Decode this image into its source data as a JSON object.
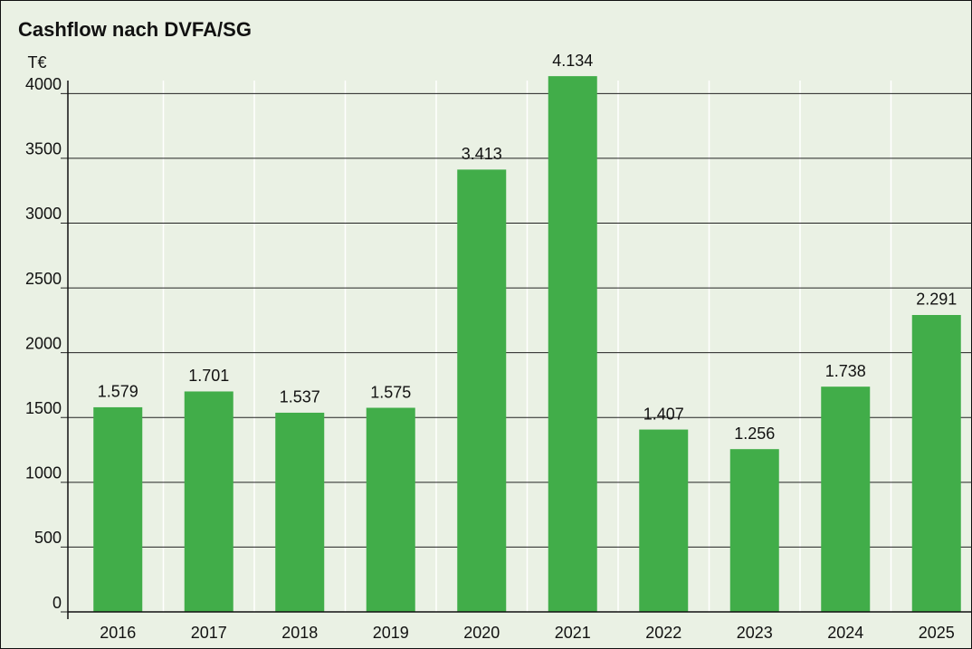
{
  "chart_data": {
    "type": "bar",
    "title": "Cashflow nach DVFA/SG",
    "y_label": "T€",
    "categories": [
      "2016",
      "2017",
      "2018",
      "2019",
      "2020",
      "2021",
      "2022",
      "2023",
      "2024",
      "2025"
    ],
    "values": [
      1579,
      1701,
      1537,
      1575,
      3413,
      4134,
      1407,
      1256,
      1738,
      2291
    ],
    "value_labels": [
      "1.579",
      "1.701",
      "1.537",
      "1.575",
      "3.413",
      "4.134",
      "1.407",
      "1.256",
      "1.738",
      "2.291"
    ],
    "color": "#41ad49",
    "ylim": [
      0,
      4100
    ],
    "yticks": [
      0,
      500,
      1000,
      1500,
      2000,
      2500,
      3000,
      3500,
      4000
    ],
    "grid": true
  }
}
